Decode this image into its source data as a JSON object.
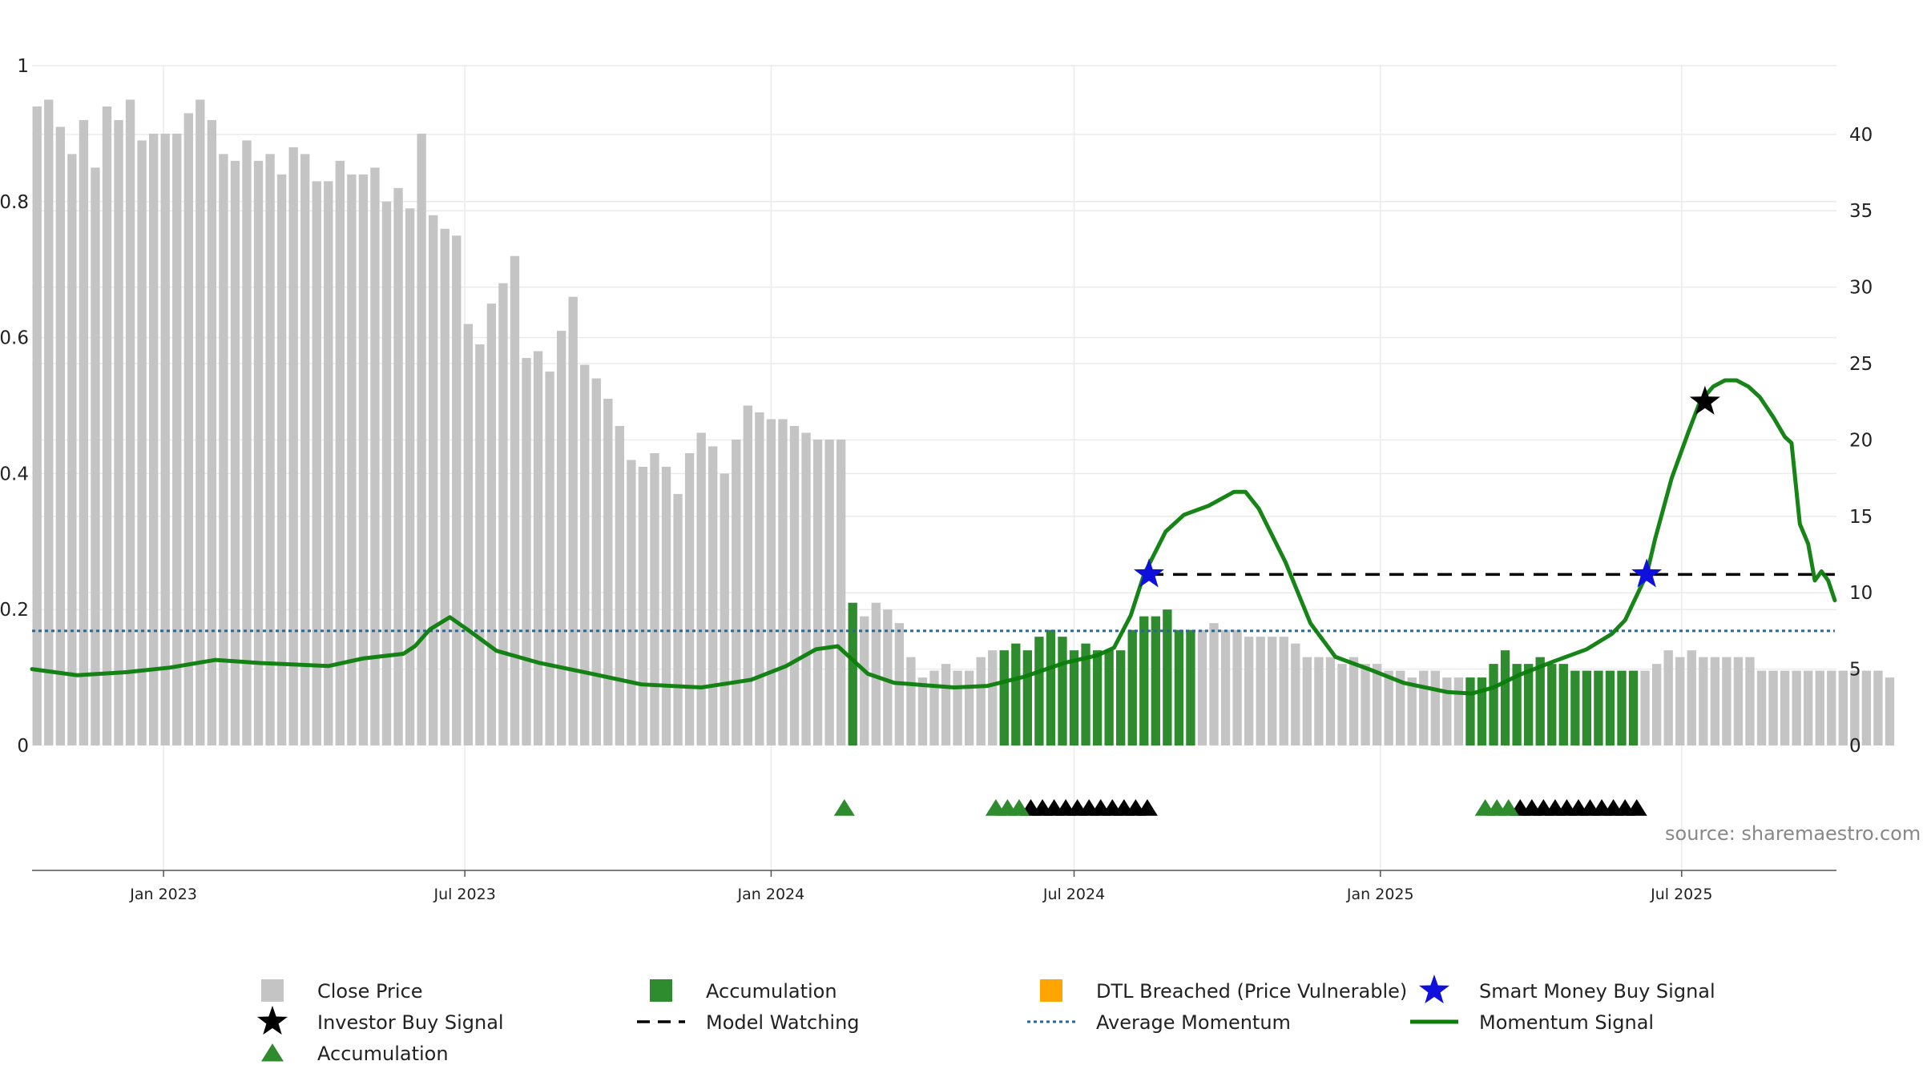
{
  "source_label": "source: sharemaestro.com",
  "legend": [
    {
      "key": "close",
      "label": "Close Price",
      "symbol": "gray-square"
    },
    {
      "key": "accum_bar",
      "label": "Accumulation",
      "symbol": "green-square"
    },
    {
      "key": "dtl",
      "label": "DTL Breached (Price Vulnerable)",
      "symbol": "orange-square"
    },
    {
      "key": "smart",
      "label": "Smart Money Buy Signal",
      "symbol": "blue-star"
    },
    {
      "key": "investor",
      "label": "Investor Buy Signal",
      "symbol": "black-star"
    },
    {
      "key": "watching",
      "label": "Model Watching",
      "symbol": "black-dash"
    },
    {
      "key": "avg",
      "label": "Average Momentum",
      "symbol": "blue-dotted"
    },
    {
      "key": "momentum",
      "label": "Momentum Signal",
      "symbol": "green-line"
    },
    {
      "key": "accum_tri",
      "label": "Accumulation",
      "symbol": "green-triangle"
    }
  ],
  "colors": {
    "close": "#c4c4c4",
    "accumulation": "#2e8b2e",
    "dtl": "#ffa500",
    "smart_star": "#1010dd",
    "investor_star": "#000000",
    "momentum": "#0a7d0a",
    "avg": "#2f6690",
    "watching": "#000000",
    "grid": "#ebebeb"
  },
  "chart_data": {
    "type": "bar",
    "title": "",
    "xlabel": "",
    "ylabel": "",
    "x_ticks": [
      "Jan 2023",
      "Jul 2023",
      "Jan 2024",
      "Jul 2024",
      "Jan 2025",
      "Jul 2025"
    ],
    "x_tick_dates": [
      "2023-01-01",
      "2023-07-01",
      "2024-01-01",
      "2024-07-01",
      "2025-01-01",
      "2025-07-01"
    ],
    "x_range": [
      "2022-10-14",
      "2025-10-02"
    ],
    "bar_start_date": "2022-10-17",
    "bar_interval": "weekly",
    "y_left": {
      "ticks": [
        0,
        0.2,
        0.4,
        0.6,
        0.8,
        1
      ],
      "range": [
        0,
        1
      ]
    },
    "y_right": {
      "ticks": [
        0,
        5,
        10,
        15,
        20,
        25,
        30,
        35,
        40
      ],
      "range": [
        0,
        44.5
      ]
    },
    "grid": true,
    "close_price": [
      0.94,
      0.95,
      0.91,
      0.87,
      0.92,
      0.85,
      0.94,
      0.92,
      0.95,
      0.89,
      0.9,
      0.9,
      0.9,
      0.93,
      0.95,
      0.92,
      0.87,
      0.86,
      0.89,
      0.86,
      0.87,
      0.84,
      0.88,
      0.87,
      0.83,
      0.83,
      0.86,
      0.84,
      0.84,
      0.85,
      0.8,
      0.82,
      0.79,
      0.9,
      0.78,
      0.76,
      0.75,
      0.62,
      0.59,
      0.65,
      0.68,
      0.72,
      0.57,
      0.58,
      0.55,
      0.61,
      0.66,
      0.56,
      0.54,
      0.51,
      0.47,
      0.42,
      0.41,
      0.43,
      0.41,
      0.37,
      0.43,
      0.46,
      0.44,
      0.4,
      0.45,
      0.5,
      0.49,
      0.48,
      0.48,
      0.47,
      0.46,
      0.45,
      0.45,
      0.45,
      0.21,
      0.19,
      0.21,
      0.2,
      0.18,
      0.13,
      0.1,
      0.11,
      0.12,
      0.11,
      0.11,
      0.13,
      0.14,
      0.14,
      0.15,
      0.14,
      0.16,
      0.17,
      0.16,
      0.14,
      0.15,
      0.14,
      0.14,
      0.14,
      0.17,
      0.19,
      0.19,
      0.2,
      0.17,
      0.17,
      0.17,
      0.18,
      0.17,
      0.17,
      0.16,
      0.16,
      0.16,
      0.16,
      0.15,
      0.13,
      0.13,
      0.13,
      0.12,
      0.13,
      0.12,
      0.12,
      0.11,
      0.11,
      0.1,
      0.11,
      0.11,
      0.1,
      0.1,
      0.1,
      0.1,
      0.12,
      0.14,
      0.12,
      0.12,
      0.13,
      0.12,
      0.12,
      0.11,
      0.11,
      0.11,
      0.11,
      0.11,
      0.11,
      0.11,
      0.12,
      0.14,
      0.13,
      0.14,
      0.13,
      0.13,
      0.13,
      0.13,
      0.13,
      0.11,
      0.11,
      0.11,
      0.11,
      0.11,
      0.11,
      0.11,
      0.11,
      0.11,
      0.11,
      0.11,
      0.1
    ],
    "accumulation_bar_indices": [
      70,
      83,
      84,
      85,
      86,
      87,
      88,
      89,
      90,
      91,
      92,
      93,
      94,
      95,
      96,
      97,
      98,
      99,
      123,
      124,
      125,
      126,
      127,
      128,
      129,
      130,
      131,
      132,
      133,
      134,
      135,
      136,
      137
    ],
    "momentum_signal": [
      [
        "2022-10-14",
        5.0
      ],
      [
        "2022-11-10",
        4.6
      ],
      [
        "2022-12-10",
        4.8
      ],
      [
        "2023-01-05",
        5.1
      ],
      [
        "2023-02-01",
        5.6
      ],
      [
        "2023-02-28",
        5.4
      ],
      [
        "2023-04-10",
        5.2
      ],
      [
        "2023-05-01",
        5.7
      ],
      [
        "2023-05-25",
        6.0
      ],
      [
        "2023-06-01",
        6.5
      ],
      [
        "2023-06-10",
        7.6
      ],
      [
        "2023-06-22",
        8.4
      ],
      [
        "2023-07-05",
        7.4
      ],
      [
        "2023-07-20",
        6.2
      ],
      [
        "2023-08-15",
        5.4
      ],
      [
        "2023-09-15",
        4.7
      ],
      [
        "2023-10-15",
        4.0
      ],
      [
        "2023-11-20",
        3.8
      ],
      [
        "2023-12-20",
        4.3
      ],
      [
        "2024-01-10",
        5.2
      ],
      [
        "2024-01-28",
        6.3
      ],
      [
        "2024-02-10",
        6.5
      ],
      [
        "2024-02-28",
        4.7
      ],
      [
        "2024-03-15",
        4.1
      ],
      [
        "2024-04-20",
        3.8
      ],
      [
        "2024-05-10",
        3.9
      ],
      [
        "2024-06-01",
        4.5
      ],
      [
        "2024-06-25",
        5.4
      ],
      [
        "2024-07-15",
        5.9
      ],
      [
        "2024-07-25",
        6.4
      ],
      [
        "2024-08-04",
        8.5
      ],
      [
        "2024-08-12",
        11.2
      ],
      [
        "2024-08-25",
        14.0
      ],
      [
        "2024-09-05",
        15.1
      ],
      [
        "2024-09-20",
        15.7
      ],
      [
        "2024-10-05",
        16.6
      ],
      [
        "2024-10-12",
        16.6
      ],
      [
        "2024-10-20",
        15.5
      ],
      [
        "2024-11-05",
        12.0
      ],
      [
        "2024-11-20",
        8.0
      ],
      [
        "2024-12-05",
        5.8
      ],
      [
        "2024-12-25",
        5.0
      ],
      [
        "2025-01-15",
        4.1
      ],
      [
        "2025-02-10",
        3.5
      ],
      [
        "2025-02-25",
        3.4
      ],
      [
        "2025-03-10",
        3.8
      ],
      [
        "2025-03-25",
        4.6
      ],
      [
        "2025-04-15",
        5.5
      ],
      [
        "2025-05-05",
        6.3
      ],
      [
        "2025-05-20",
        7.3
      ],
      [
        "2025-05-28",
        8.2
      ],
      [
        "2025-06-10",
        11.2
      ],
      [
        "2025-06-15",
        13.5
      ],
      [
        "2025-06-25",
        17.5
      ],
      [
        "2025-07-05",
        20.5
      ],
      [
        "2025-07-12",
        22.5
      ],
      [
        "2025-07-20",
        23.5
      ],
      [
        "2025-07-27",
        23.9
      ],
      [
        "2025-08-03",
        23.9
      ],
      [
        "2025-08-10",
        23.5
      ],
      [
        "2025-08-17",
        22.8
      ],
      [
        "2025-08-25",
        21.5
      ],
      [
        "2025-09-01",
        20.2
      ],
      [
        "2025-09-05",
        19.8
      ],
      [
        "2025-09-10",
        14.5
      ],
      [
        "2025-09-15",
        13.2
      ],
      [
        "2025-09-19",
        10.8
      ],
      [
        "2025-09-23",
        11.4
      ],
      [
        "2025-09-27",
        10.8
      ],
      [
        "2025-10-01",
        9.5
      ]
    ],
    "average_momentum": 7.5,
    "model_watching": {
      "from": "2024-08-15",
      "to": "2025-10-01",
      "value": 11.2
    },
    "smart_money_buy_signals": [
      [
        "2024-08-15",
        11.2
      ],
      [
        "2025-06-10",
        11.2
      ]
    ],
    "investor_buy_signals": [
      [
        "2025-07-15",
        22.5
      ]
    ],
    "accumulation_triangles": [
      "2024-02-14",
      "2024-05-15",
      "2024-05-22",
      "2024-05-29",
      "2025-03-05",
      "2025-03-12",
      "2025-03-19"
    ],
    "watching_triangles": [
      "2024-06-05",
      "2024-06-12",
      "2024-06-19",
      "2024-06-26",
      "2024-07-03",
      "2024-07-10",
      "2024-07-17",
      "2024-07-24",
      "2024-07-31",
      "2024-08-07",
      "2024-08-14",
      "2025-03-26",
      "2025-04-02",
      "2025-04-09",
      "2025-04-16",
      "2025-04-23",
      "2025-04-30",
      "2025-05-07",
      "2025-05-14",
      "2025-05-21",
      "2025-05-28",
      "2025-06-04"
    ]
  }
}
